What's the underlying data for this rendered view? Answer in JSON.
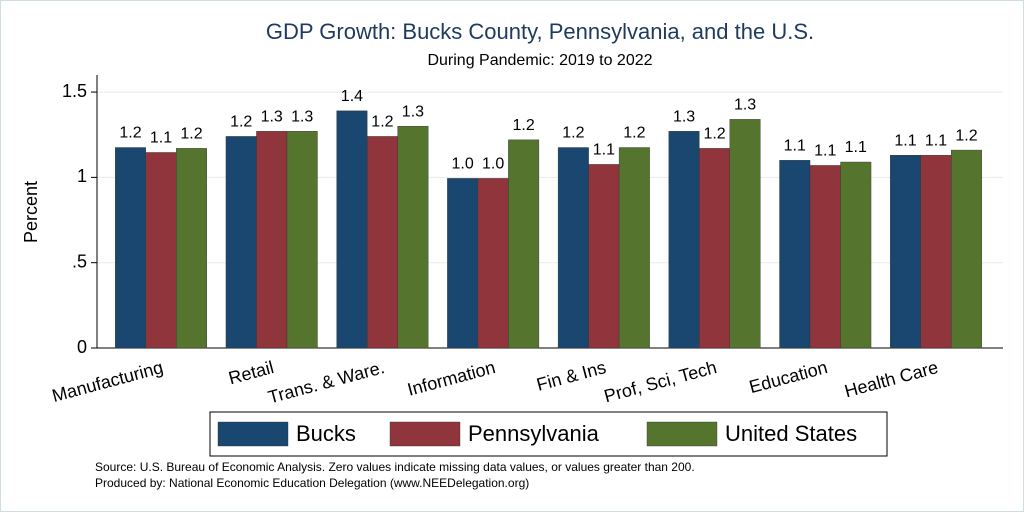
{
  "chart_data": {
    "type": "bar",
    "title": "GDP Growth: Bucks County, Pennsylvania, and the U.S.",
    "subtitle": "During Pandemic: 2019 to 2022",
    "y_label": "Percent",
    "categories": [
      "Manufacturing",
      "Retail",
      "Trans. & Ware.",
      "Information",
      "Fin & Ins",
      "Prof, Sci, Tech",
      "Education",
      "Health Care"
    ],
    "series": [
      {
        "name": "Bucks",
        "color": "#1a476f",
        "values": [
          1.175,
          1.24,
          1.39,
          0.994,
          1.175,
          1.27,
          1.1,
          1.13
        ],
        "value_labels": [
          "1.2",
          "1.2",
          "1.4",
          "1.0",
          "1.2",
          "1.3",
          "1.1",
          "1.1"
        ]
      },
      {
        "name": "Pennsylvania",
        "color": "#90353b",
        "values": [
          1.146,
          1.27,
          1.24,
          0.994,
          1.076,
          1.17,
          1.07,
          1.13
        ],
        "value_labels": [
          "1.1",
          "1.3",
          "1.2",
          "1.0",
          "1.1",
          "1.2",
          "1.1",
          "1.1"
        ]
      },
      {
        "name": "United States",
        "color": "#55752f",
        "values": [
          1.17,
          1.27,
          1.3,
          1.22,
          1.175,
          1.34,
          1.09,
          1.16
        ],
        "value_labels": [
          "1.2",
          "1.3",
          "1.3",
          "1.2",
          "1.2",
          "1.3",
          "1.1",
          "1.2"
        ]
      }
    ],
    "ylim": [
      0,
      1.6
    ],
    "yticks": [
      0,
      {
        "value": 0.5,
        "label": ".5"
      },
      1,
      1.5
    ],
    "grid": true,
    "legend": "bottom",
    "notes": [
      "Source: U.S. Bureau of Economic Analysis. Zero values indicate missing data values, or values greater than 200.",
      "Produced by: National Economic Education Delegation (www.NEEDelegation.org)"
    ]
  }
}
